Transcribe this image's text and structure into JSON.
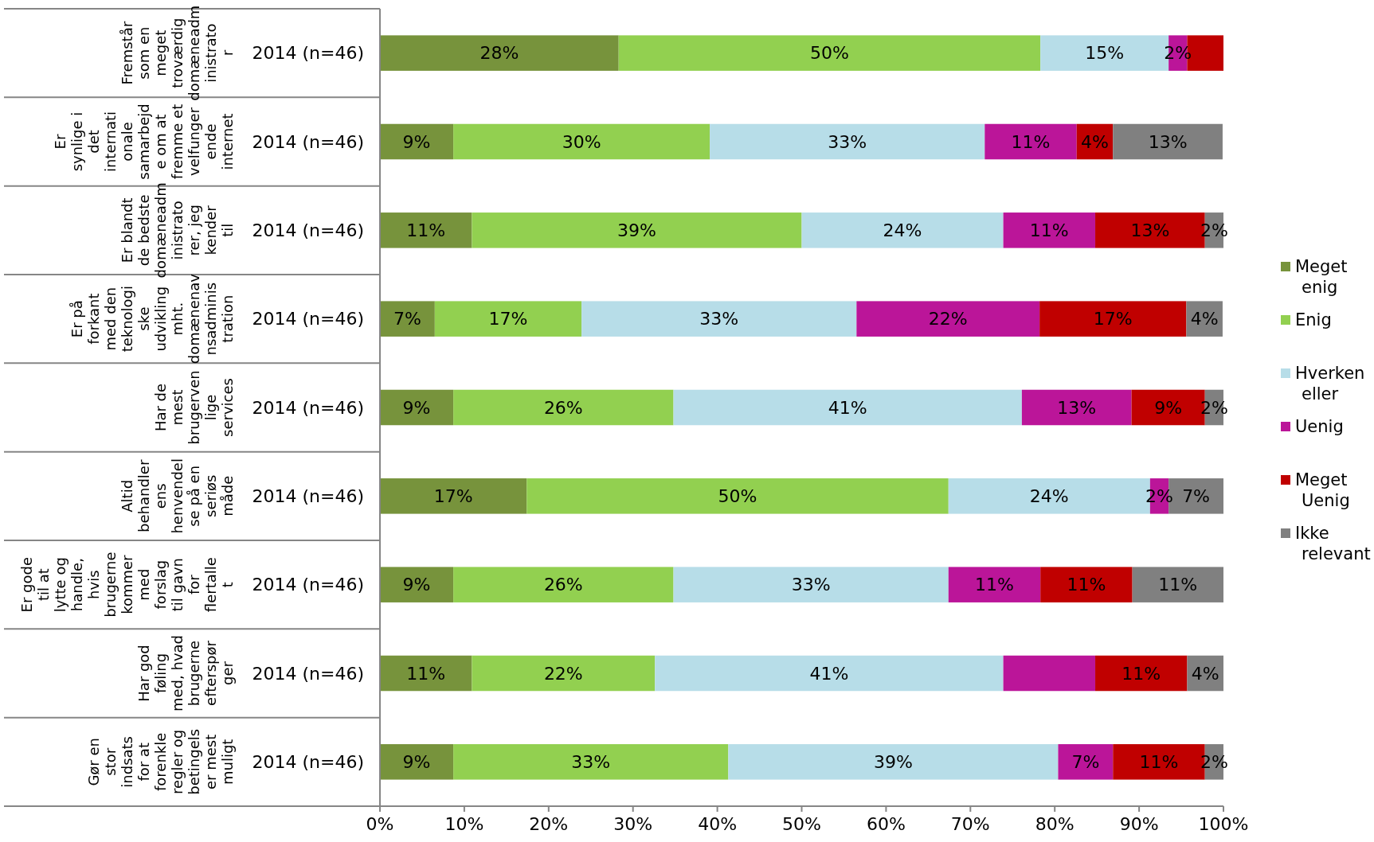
{
  "chart_data": {
    "type": "bar",
    "orientation": "horizontal",
    "stacked": true,
    "categories": [
      "Fremstår som en meget troværdig domæneadministrator",
      "Er synlige i det internationale samarbejde om at fremme et velfungerende internet",
      "Er blandt de bedste domæneadministratorer, jeg kender til",
      "Er på forkant med den teknologiske udvikling mht. domænenavnsadministration",
      "Har de mest brugervenlige services",
      "Altid behandler ens henvendelse på en seriøs måde",
      "Er gode til at lytte og handle, hvis brugerne kommer med forslag til gavn for flertallet",
      "Har god føling med, hvad brugerne efterspørger",
      "Gør en stor indsats for at forenkle regler og betingelser mest muligt"
    ],
    "series": [
      {
        "name": "Meget enig",
        "color": "#77933c",
        "values": [
          28.3,
          8.7,
          10.9,
          6.5,
          8.7,
          17.4,
          8.7,
          10.9,
          8.7
        ],
        "value_labels": [
          "28%",
          "9%",
          "11%",
          "7%",
          "9%",
          "17%",
          "9%",
          "11%",
          "9%"
        ]
      },
      {
        "name": "Enig",
        "color": "#92d050",
        "values": [
          50.0,
          30.4,
          39.1,
          17.4,
          26.1,
          50.0,
          26.1,
          21.7,
          32.6
        ],
        "value_labels": [
          "50%",
          "30%",
          "39%",
          "17%",
          "26%",
          "50%",
          "26%",
          "22%",
          "33%"
        ]
      },
      {
        "name": "Hverken eller",
        "color": "#b7dde8",
        "values": [
          15.2,
          32.6,
          23.9,
          32.6,
          41.3,
          23.9,
          32.6,
          41.3,
          39.1
        ],
        "value_labels": [
          "15%",
          "33%",
          "24%",
          "33%",
          "41%",
          "24%",
          "33%",
          "41%",
          "39%"
        ]
      },
      {
        "name": "Uenig",
        "color": "#bb1599",
        "values": [
          2.2,
          10.9,
          10.9,
          21.7,
          13.0,
          2.2,
          10.9,
          10.9,
          6.5
        ],
        "value_labels": [
          "2%",
          "11%",
          "11%",
          "22%",
          "13%",
          "2%",
          "11%",
          null,
          "7%"
        ]
      },
      {
        "name": "Meget Uenig",
        "color": "#c00000",
        "values": [
          4.3,
          4.3,
          13.0,
          17.4,
          8.7,
          0,
          10.9,
          10.9,
          10.9
        ],
        "value_labels": [
          null,
          "4%",
          "13%",
          "17%",
          "9%",
          null,
          "11%",
          "11%",
          "11%"
        ]
      },
      {
        "name": "Ikke relevant",
        "color": "#808080",
        "values": [
          0,
          13.0,
          2.2,
          4.3,
          2.2,
          6.5,
          10.8,
          4.3,
          2.2
        ],
        "value_labels": [
          null,
          "13%",
          "2%",
          "4%",
          "2%",
          "7%",
          "11%",
          "4%",
          "2%"
        ]
      }
    ],
    "xlim": [
      0,
      100
    ],
    "xticks": [
      {
        "value": 0,
        "label": "0%"
      },
      {
        "value": 10,
        "label": "10%"
      },
      {
        "value": 20,
        "label": "20%"
      },
      {
        "value": 30,
        "label": "30%"
      },
      {
        "value": 40,
        "label": "40%"
      },
      {
        "value": 50,
        "label": "50%"
      },
      {
        "value": 60,
        "label": "60%"
      },
      {
        "value": 70,
        "label": "70%"
      },
      {
        "value": 80,
        "label": "80%"
      },
      {
        "value": 90,
        "label": "90%"
      },
      {
        "value": 100,
        "label": "100%"
      }
    ],
    "annotations": [
      "2014 (n=46)",
      "2014 (n=46)",
      "2014 (n=46)",
      "2014 (n=46)",
      "2014 (n=46)",
      "2014 (n=46)",
      "2014 (n=46)",
      "2014 (n=46)",
      "2014 (n=46)"
    ],
    "grid": false,
    "legend": "right"
  }
}
